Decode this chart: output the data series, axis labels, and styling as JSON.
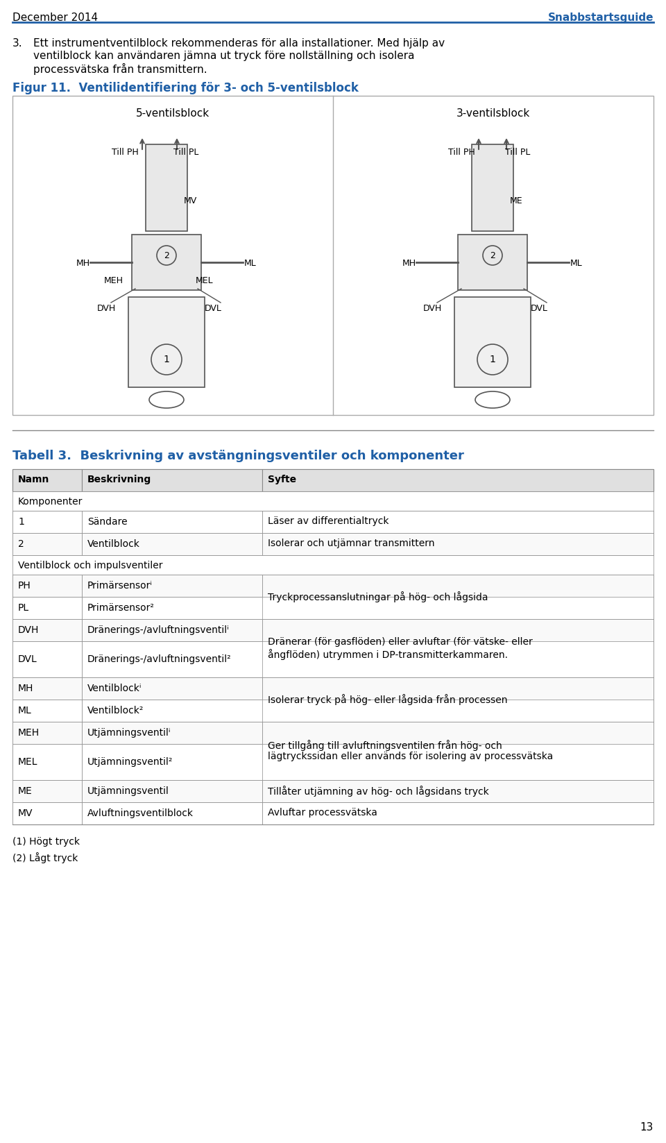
{
  "header_left": "December 2014",
  "header_right": "Snabbstartsguide",
  "header_right_color": "#1f5fa6",
  "section_number": "3.",
  "section_text": "Ett instrumentventilblock rekommenderas för alla installationer. Med hjälp av\nventilblock kan användaren jämna ut tryck före nollställning och isolera\nprocessvätska från transmittern.",
  "figure_title": "Figur 11.  Ventilidentifiering för 3- och 5-ventilsblock",
  "figure_title_color": "#1f5fa6",
  "diagram_left_title": "5-ventilsblock",
  "diagram_right_title": "3-ventilsblock",
  "table_title": "Tabell 3.  Beskrivning av avstängningsventiler och komponenter",
  "table_title_color": "#1f5fa6",
  "col_headers": [
    "Namn",
    "Beskrivning",
    "Syfte"
  ],
  "col_header_bg": "#e0e0e0",
  "section_rows": [
    {
      "type": "section",
      "col1": "Komponenter",
      "col2": "",
      "col3": ""
    },
    {
      "type": "data",
      "col1": "1",
      "col2": "Sändare",
      "col3": "Läser av differentialtryck"
    },
    {
      "type": "data",
      "col1": "2",
      "col2": "Ventilblock",
      "col3": "Isolerar och utjämnar transmittern"
    },
    {
      "type": "section",
      "col1": "Ventilblock och impulsventiler",
      "col2": "",
      "col3": ""
    },
    {
      "type": "data",
      "col1": "PH",
      "col2": "Primärsensorⁱ",
      "col3": ""
    },
    {
      "type": "data",
      "col1": "PL",
      "col2": "Primärsensor²",
      "col3": "Tryckprocessanslutningar på hög- och lågsida"
    },
    {
      "type": "data",
      "col1": "DVH",
      "col2": "Dränerings-/avluftningsventilⁱ",
      "col3": ""
    },
    {
      "type": "data",
      "col1": "DVL",
      "col2": "Dränerings-/avluftningsventil²",
      "col3": "Dränerar (för gasflöden) eller avluftar (för vätske- eller\nångflöden) utrymmen i DP-transmitterkammaren."
    },
    {
      "type": "data",
      "col1": "MH",
      "col2": "Ventilblockⁱ",
      "col3": ""
    },
    {
      "type": "data",
      "col1": "ML",
      "col2": "Ventilblock²",
      "col3": "Isolerar tryck på hög- eller lågsida från processen"
    },
    {
      "type": "data",
      "col1": "MEH",
      "col2": "Utjämningsventilⁱ",
      "col3": ""
    },
    {
      "type": "data",
      "col1": "MEL",
      "col2": "Utjämningsventil²",
      "col3": "Ger tillgång till avluftningsventilen från hög- och\nlägtryckssidan eller används för isolering av processvätska"
    },
    {
      "type": "data",
      "col1": "ME",
      "col2": "Utjämningsventil",
      "col3": "Tillåter utjämning av hög- och lågsidans tryck"
    },
    {
      "type": "data",
      "col1": "MV",
      "col2": "Avluftningsventilblock",
      "col3": "Avluftar processvätska"
    }
  ],
  "footnotes": [
    "(1) Högt tryck",
    "(2) Lågt tryck"
  ],
  "page_number": "13",
  "bg_color": "#ffffff",
  "text_color": "#000000",
  "border_color": "#888888",
  "line_color": "#cccccc"
}
